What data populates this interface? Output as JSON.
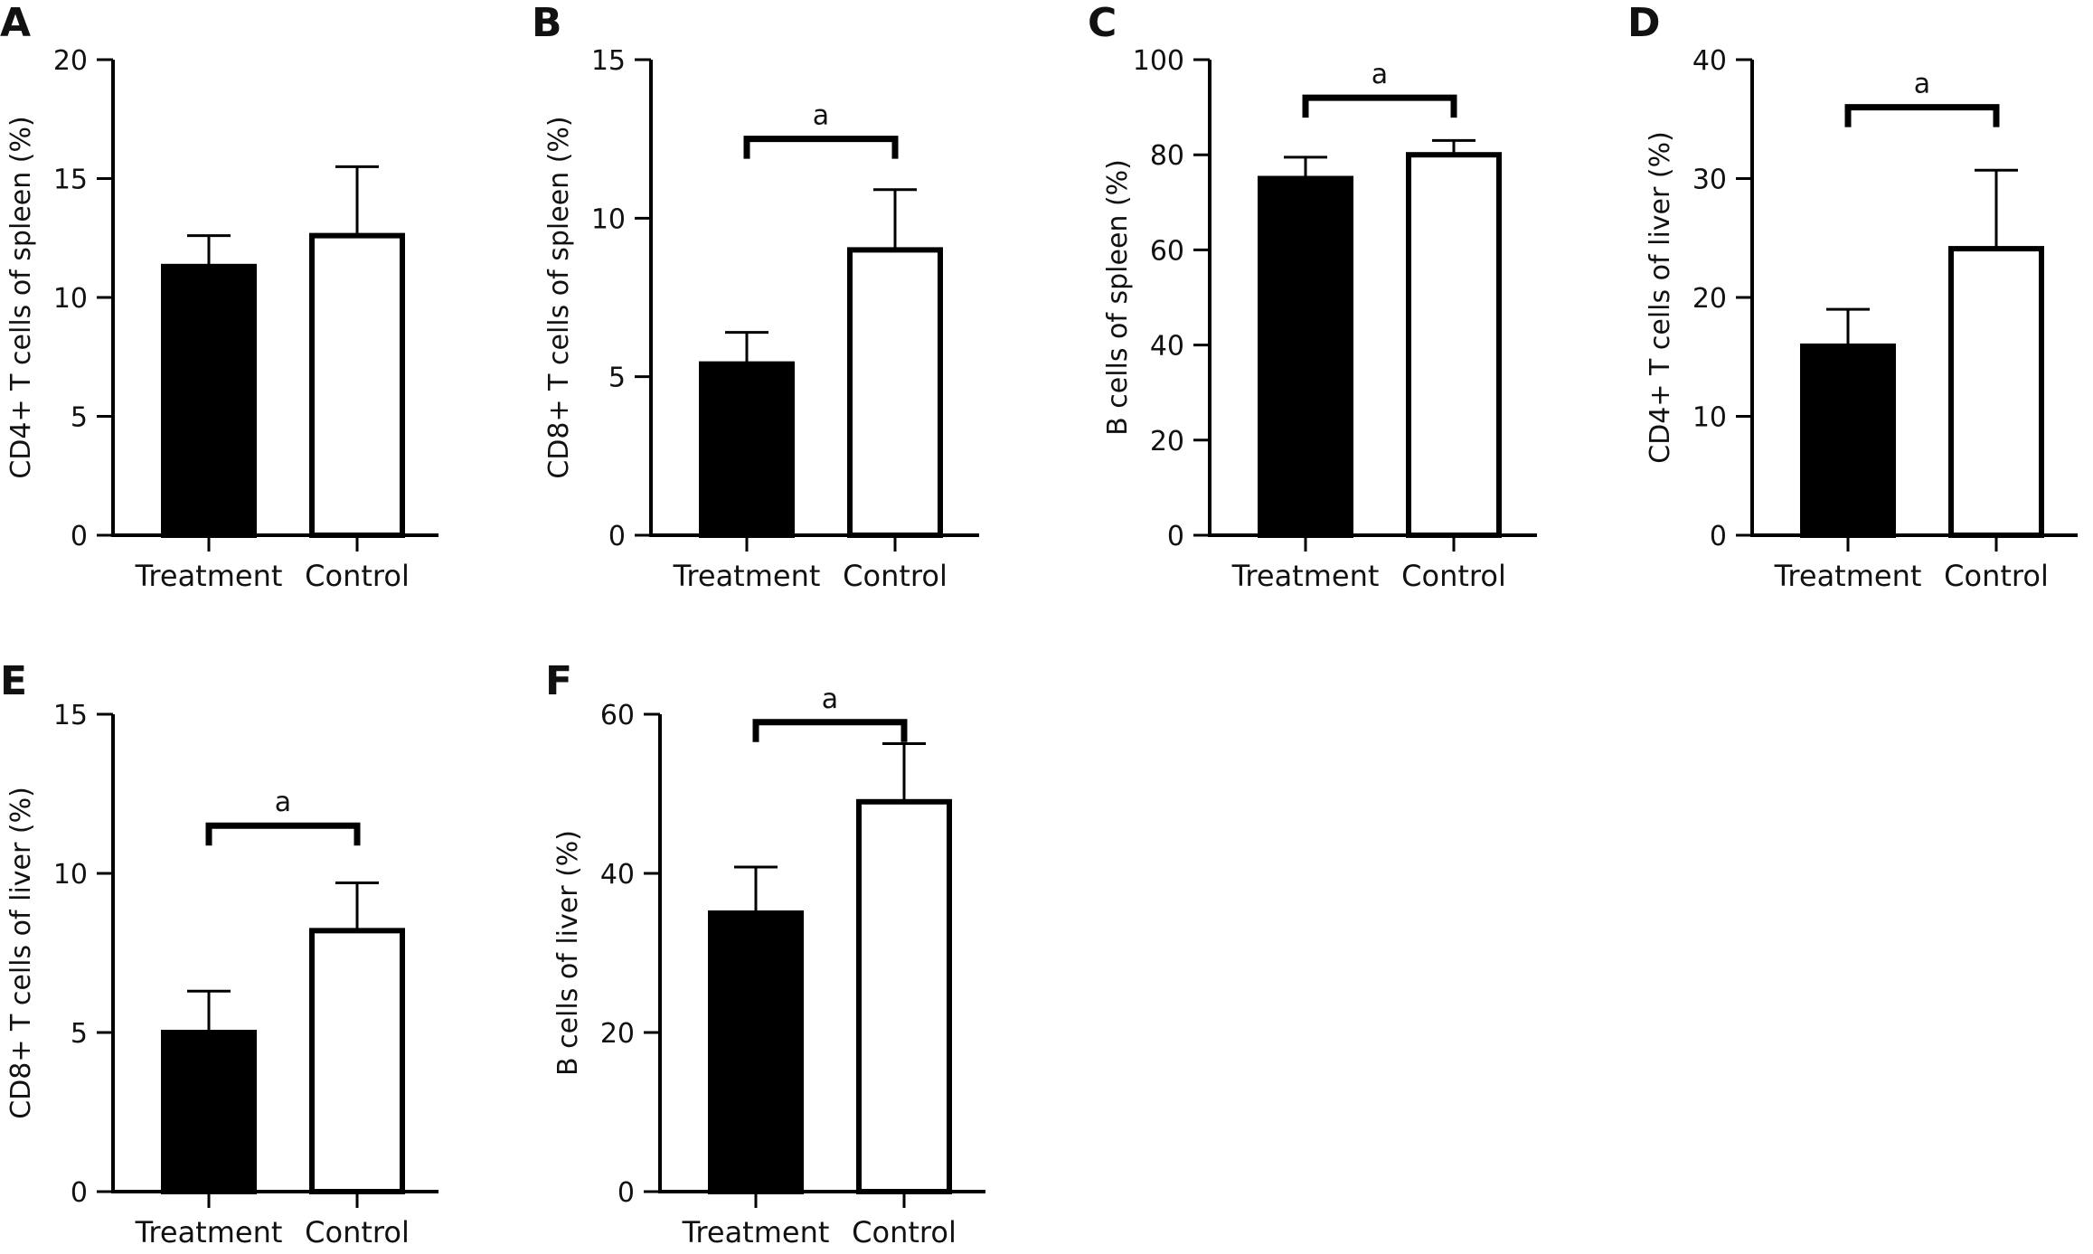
{
  "chart_data": [
    {
      "type": "bar",
      "panel": "A",
      "categories": [
        "Treatment",
        "Control"
      ],
      "values": [
        11.3,
        12.6
      ],
      "errors": [
        1.3,
        2.9
      ],
      "fills": [
        "#000000",
        "#ffffff"
      ],
      "ylabel": "CD4+ T cells of spleen (%)",
      "ylim": [
        0,
        20
      ],
      "yticks": [
        0,
        5,
        10,
        15,
        20
      ],
      "significance": null
    },
    {
      "type": "bar",
      "panel": "B",
      "categories": [
        "Treatment",
        "Control"
      ],
      "values": [
        5.4,
        9.0
      ],
      "errors": [
        1.0,
        1.9
      ],
      "fills": [
        "#000000",
        "#ffffff"
      ],
      "ylabel": "CD8+ T cells of spleen (%)",
      "ylim": [
        0,
        15
      ],
      "yticks": [
        0,
        5,
        10,
        15
      ],
      "significance": {
        "label": "a",
        "y": 12.5
      }
    },
    {
      "type": "bar",
      "panel": "C",
      "categories": [
        "Treatment",
        "Control"
      ],
      "values": [
        75,
        80
      ],
      "errors": [
        4.5,
        3.0
      ],
      "fills": [
        "#000000",
        "#ffffff"
      ],
      "ylabel": "B cells of spleen (%)",
      "ylim": [
        0,
        100
      ],
      "yticks": [
        0,
        20,
        40,
        60,
        80,
        100
      ],
      "significance": {
        "label": "a",
        "y": 92
      }
    },
    {
      "type": "bar",
      "panel": "D",
      "categories": [
        "Treatment",
        "Control"
      ],
      "values": [
        15.9,
        24.1
      ],
      "errors": [
        3.1,
        6.6
      ],
      "fills": [
        "#000000",
        "#ffffff"
      ],
      "ylabel": "CD4+ T cells of liver (%)",
      "ylim": [
        0,
        40
      ],
      "yticks": [
        0,
        10,
        20,
        30,
        40
      ],
      "significance": {
        "label": "a",
        "y": 36
      }
    },
    {
      "type": "bar",
      "panel": "E",
      "categories": [
        "Treatment",
        "Control"
      ],
      "values": [
        5.0,
        8.2
      ],
      "errors": [
        1.3,
        1.5
      ],
      "fills": [
        "#000000",
        "#ffffff"
      ],
      "ylabel": "CD8+ T cells of liver (%)",
      "ylim": [
        0,
        15
      ],
      "yticks": [
        0,
        5,
        10,
        15
      ],
      "significance": {
        "label": "a",
        "y": 11.5
      }
    },
    {
      "type": "bar",
      "panel": "F",
      "categories": [
        "Treatment",
        "Control"
      ],
      "values": [
        35,
        49
      ],
      "errors": [
        5.8,
        7.3
      ],
      "fills": [
        "#000000",
        "#ffffff"
      ],
      "ylabel": "B cells of liver (%)",
      "ylim": [
        0,
        60
      ],
      "yticks": [
        0,
        20,
        40,
        60
      ],
      "significance": {
        "label": "a",
        "y": 59
      }
    }
  ]
}
